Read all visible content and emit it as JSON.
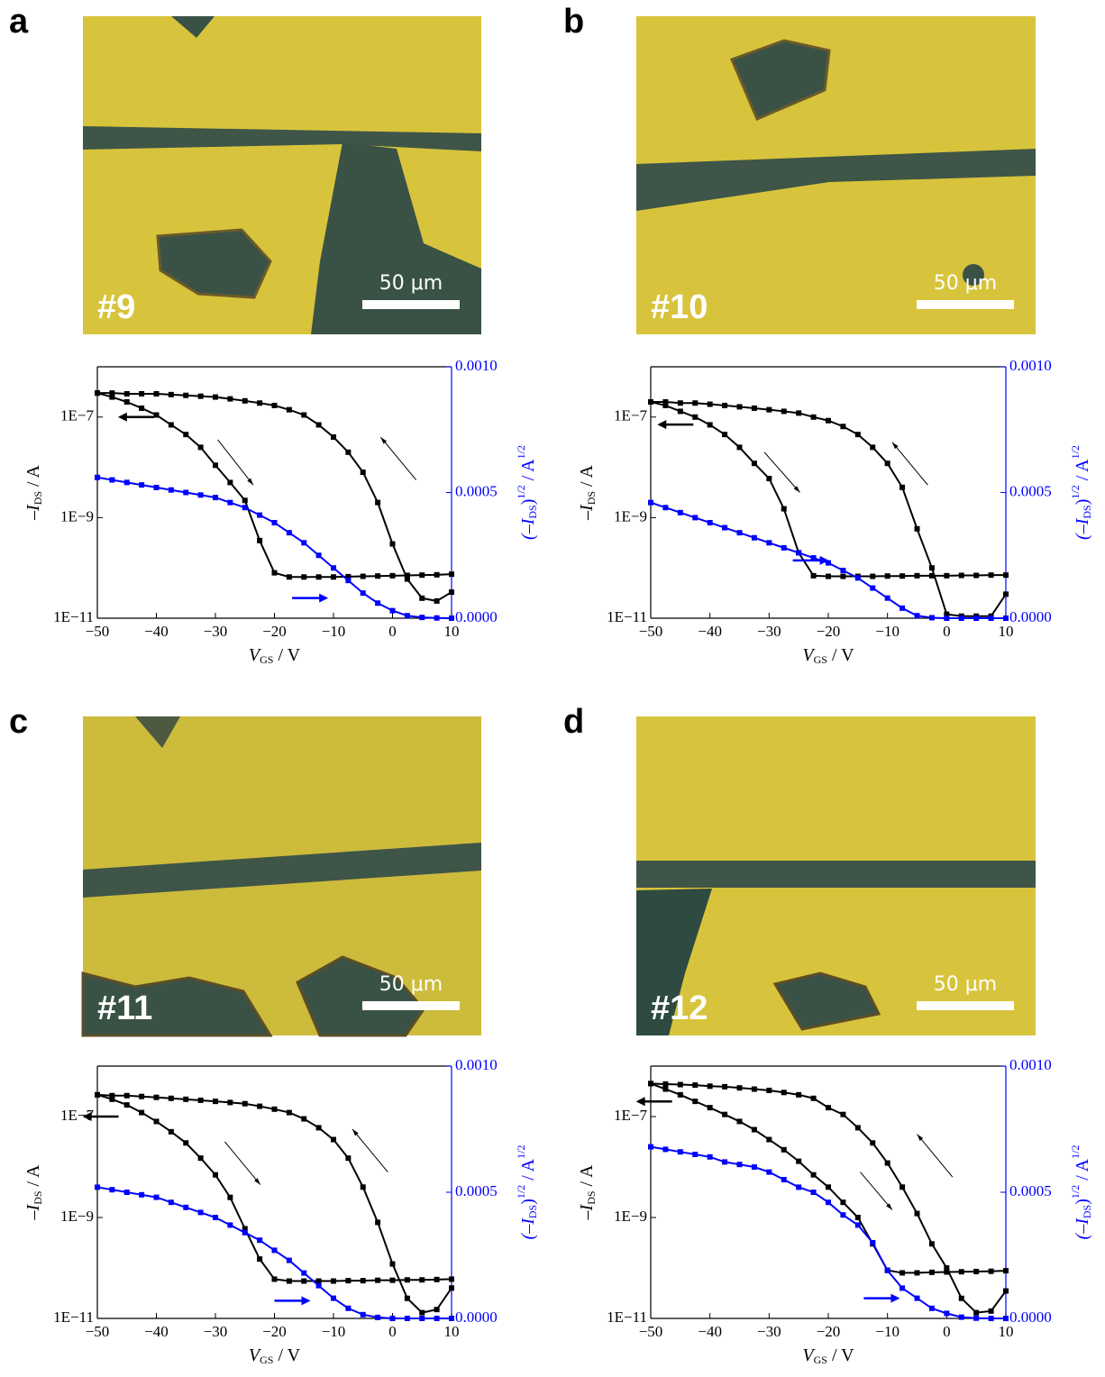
{
  "panels": [
    {
      "letter": "a",
      "image": {
        "label": "#9",
        "scale_bar": "50 μm"
      }
    },
    {
      "letter": "b",
      "image": {
        "label": "#10",
        "scale_bar": "50 μm"
      }
    },
    {
      "letter": "c",
      "image": {
        "label": "#11",
        "scale_bar": "50 μm"
      }
    },
    {
      "letter": "d",
      "image": {
        "label": "#12",
        "scale_bar": "50 μm"
      }
    }
  ],
  "chart_data": [
    {
      "type": "line",
      "ylog": true,
      "x": [
        -50,
        -47.5,
        -45,
        -42.5,
        -40,
        -37.5,
        -35,
        -32.5,
        -30,
        -27.5,
        -25,
        -22.5,
        -20,
        -17.5,
        -15,
        -12.5,
        -10,
        -7.5,
        -5,
        -2.5,
        0,
        2.5,
        5,
        7.5,
        10
      ],
      "series": [
        {
          "color": "#000000",
          "values": [
            3e-07,
            2.5e-07,
            2e-07,
            1.5e-07,
            1.1e-07,
            7e-08,
            4.5e-08,
            2.5e-08,
            1.1e-08,
            5e-09,
            2.2e-09,
            3.5e-10,
            8e-11,
            6.6e-11,
            6.6e-11,
            6.6e-11,
            6.6e-11,
            6.7e-11,
            6.8e-11,
            6.9e-11,
            7e-11,
            7.1e-11,
            7.2e-11,
            7.3e-11,
            7.5e-11
          ]
        },
        {
          "color": "#000000",
          "values": [
            3e-07,
            3e-07,
            2.9e-07,
            2.9e-07,
            2.9e-07,
            2.8e-07,
            2.7e-07,
            2.6e-07,
            2.5e-07,
            2.3e-07,
            2.1e-07,
            1.9e-07,
            1.7e-07,
            1.4e-07,
            1.1e-07,
            7e-08,
            4e-08,
            2e-08,
            8e-09,
            2e-09,
            3e-10,
            6e-11,
            2.5e-11,
            2.2e-11,
            3.3e-11
          ]
        },
        {
          "color": "#0000ff",
          "axis": "y2",
          "values": [
            0.00056,
            0.00055,
            0.00054,
            0.00053,
            0.00052,
            0.00051,
            0.0005,
            0.00049,
            0.00048,
            0.00046,
            0.00044,
            0.00041,
            0.00038,
            0.00034,
            0.0003,
            0.00025,
            0.0002,
            0.00015,
            0.0001,
            6e-05,
            3e-05,
            1e-05,
            3e-06,
            1e-06,
            0
          ]
        }
      ],
      "xlim": [
        -50,
        10
      ],
      "xticks": [
        {
          "value": -50,
          "label": "−50"
        },
        {
          "value": -40,
          "label": "−40"
        },
        {
          "value": -30,
          "label": "−30"
        },
        {
          "value": -20,
          "label": "−20"
        },
        {
          "value": -10,
          "label": "−10"
        },
        0,
        10
      ],
      "ylim": [
        1e-11,
        1e-06
      ],
      "yticks": [
        {
          "value": 1e-11,
          "label": "1E−11"
        },
        {
          "value": 1e-09,
          "label": "1E−9"
        },
        {
          "value": 1e-07,
          "label": "1E−7"
        }
      ],
      "y2lim": [
        0,
        0.001
      ],
      "y2ticks": [
        {
          "value": 0,
          "label": "0.0000"
        },
        {
          "value": 0.0005,
          "label": "0.0005"
        },
        {
          "value": 0.001,
          "label": "0.0010"
        }
      ],
      "xlabel": {
        "symbol": "V",
        "sub": "GS",
        "unit": " / V"
      },
      "ylabel": {
        "symbol": "–I",
        "sub": "DS",
        "unit": " / A"
      },
      "y2label": {
        "open": "(–I",
        "sub": "DS",
        "close": ")",
        "sup": "1/2",
        "unit": " / A",
        "unit_sup": "1/2"
      }
    },
    {
      "type": "line",
      "ylog": true,
      "x": [
        -50,
        -47.5,
        -45,
        -42.5,
        -40,
        -37.5,
        -35,
        -32.5,
        -30,
        -27.5,
        -25,
        -22.5,
        -20,
        -17.5,
        -15,
        -12.5,
        -10,
        -7.5,
        -5,
        -2.5,
        0,
        2.5,
        5,
        7.5,
        10
      ],
      "series": [
        {
          "color": "#000000",
          "values": [
            2e-07,
            1.7e-07,
            1.3e-07,
            1e-07,
            7e-08,
            4.5e-08,
            2.5e-08,
            1.2e-08,
            6e-09,
            1.5e-09,
            2e-10,
            7e-11,
            6.8e-11,
            6.8e-11,
            6.8e-11,
            6.8e-11,
            6.9e-11,
            6.9e-11,
            7e-11,
            7e-11,
            7e-11,
            7.1e-11,
            7.1e-11,
            7.2e-11,
            7.2e-11
          ]
        },
        {
          "color": "#000000",
          "values": [
            2e-07,
            2e-07,
            1.9e-07,
            1.9e-07,
            1.8e-07,
            1.7e-07,
            1.6e-07,
            1.5e-07,
            1.4e-07,
            1.3e-07,
            1.2e-07,
            1e-07,
            8.5e-08,
            6.5e-08,
            4.5e-08,
            2.5e-08,
            1.2e-08,
            4e-09,
            6e-10,
            1e-10,
            1.2e-11,
            1.1e-11,
            1.1e-11,
            1.1e-11,
            3e-11
          ]
        },
        {
          "color": "#0000ff",
          "axis": "y2",
          "values": [
            0.00046,
            0.00044,
            0.00042,
            0.0004,
            0.00038,
            0.00036,
            0.00034,
            0.00032,
            0.0003,
            0.00028,
            0.00026,
            0.00024,
            0.00022,
            0.00019,
            0.00016,
            0.00012,
            8e-05,
            4e-05,
            1e-05,
            2e-06,
            0,
            0,
            0,
            0,
            0
          ]
        }
      ],
      "xlim": [
        -50,
        10
      ],
      "xticks": [
        {
          "value": -50,
          "label": "−50"
        },
        {
          "value": -40,
          "label": "−40"
        },
        {
          "value": -30,
          "label": "−30"
        },
        {
          "value": -20,
          "label": "−20"
        },
        {
          "value": -10,
          "label": "−10"
        },
        0,
        10
      ],
      "ylim": [
        1e-11,
        1e-06
      ],
      "yticks": [
        {
          "value": 1e-11,
          "label": "1E−11"
        },
        {
          "value": 1e-09,
          "label": "1E−9"
        },
        {
          "value": 1e-07,
          "label": "1E−7"
        }
      ],
      "y2lim": [
        0,
        0.001
      ],
      "y2ticks": [
        {
          "value": 0,
          "label": "0.0000"
        },
        {
          "value": 0.0005,
          "label": "0.0005"
        },
        {
          "value": 0.001,
          "label": "0.0010"
        }
      ],
      "xlabel": {
        "symbol": "V",
        "sub": "GS",
        "unit": " / V"
      },
      "ylabel": {
        "symbol": "–I",
        "sub": "DS",
        "unit": " / A"
      },
      "y2label": {
        "open": "(–I",
        "sub": "DS",
        "close": ")",
        "sup": "1/2",
        "unit": " / A",
        "unit_sup": "1/2"
      }
    },
    {
      "type": "line",
      "ylog": true,
      "x": [
        -50,
        -47.5,
        -45,
        -42.5,
        -40,
        -37.5,
        -35,
        -32.5,
        -30,
        -27.5,
        -25,
        -22.5,
        -20,
        -17.5,
        -15,
        -12.5,
        -10,
        -7.5,
        -5,
        -2.5,
        0,
        2.5,
        5,
        7.5,
        10
      ],
      "series": [
        {
          "color": "#000000",
          "values": [
            2.7e-07,
            2.2e-07,
            1.7e-07,
            1.2e-07,
            8e-08,
            5e-08,
            3e-08,
            1.5e-08,
            7e-09,
            2.5e-09,
            6e-10,
            1.5e-10,
            6e-11,
            5.5e-11,
            5.5e-11,
            5.5e-11,
            5.5e-11,
            5.6e-11,
            5.6e-11,
            5.7e-11,
            5.7e-11,
            5.8e-11,
            5.8e-11,
            5.9e-11,
            6e-11
          ]
        },
        {
          "color": "#000000",
          "values": [
            2.7e-07,
            2.6e-07,
            2.6e-07,
            2.5e-07,
            2.4e-07,
            2.3e-07,
            2.2e-07,
            2.1e-07,
            2e-07,
            1.9e-07,
            1.8e-07,
            1.6e-07,
            1.4e-07,
            1.2e-07,
            9e-08,
            6e-08,
            3.5e-08,
            1.5e-08,
            4e-09,
            8e-10,
            1.2e-10,
            2.5e-11,
            1.3e-11,
            1.5e-11,
            4e-11
          ]
        },
        {
          "color": "#0000ff",
          "axis": "y2",
          "values": [
            0.00052,
            0.00051,
            0.0005,
            0.00049,
            0.00048,
            0.00046,
            0.00044,
            0.00042,
            0.0004,
            0.00037,
            0.00034,
            0.00031,
            0.00027,
            0.00023,
            0.00018,
            0.00013,
            8e-05,
            4e-05,
            1.5e-05,
            4e-06,
            0,
            0,
            0,
            0,
            0
          ]
        }
      ],
      "xlim": [
        -50,
        10
      ],
      "xticks": [
        {
          "value": -50,
          "label": "−50"
        },
        {
          "value": -40,
          "label": "−40"
        },
        {
          "value": -30,
          "label": "−30"
        },
        {
          "value": -20,
          "label": "−20"
        },
        {
          "value": -10,
          "label": "−10"
        },
        0,
        10
      ],
      "ylim": [
        1e-11,
        1e-06
      ],
      "yticks": [
        {
          "value": 1e-11,
          "label": "1E−11"
        },
        {
          "value": 1e-09,
          "label": "1E−9"
        },
        {
          "value": 1e-07,
          "label": "1E−7"
        }
      ],
      "y2lim": [
        0,
        0.001
      ],
      "y2ticks": [
        {
          "value": 0,
          "label": "0.0000"
        },
        {
          "value": 0.0005,
          "label": "0.0005"
        },
        {
          "value": 0.001,
          "label": "0.0010"
        }
      ],
      "xlabel": {
        "symbol": "V",
        "sub": "GS",
        "unit": " / V"
      },
      "ylabel": {
        "symbol": "–I",
        "sub": "DS",
        "unit": " / A"
      },
      "y2label": {
        "open": "(–I",
        "sub": "DS",
        "close": ")",
        "sup": "1/2",
        "unit": " / A",
        "unit_sup": "1/2"
      }
    },
    {
      "type": "line",
      "ylog": true,
      "x": [
        -50,
        -47.5,
        -45,
        -42.5,
        -40,
        -37.5,
        -35,
        -32.5,
        -30,
        -27.5,
        -25,
        -22.5,
        -20,
        -17.5,
        -15,
        -12.5,
        -10,
        -7.5,
        -5,
        -2.5,
        0,
        2.5,
        5,
        7.5,
        10
      ],
      "series": [
        {
          "color": "#000000",
          "values": [
            4.5e-07,
            3.5e-07,
            2.7e-07,
            2e-07,
            1.5e-07,
            1.1e-07,
            8e-08,
            5.5e-08,
            3.5e-08,
            2.2e-08,
            1.3e-08,
            7e-09,
            4e-09,
            2e-09,
            1e-09,
            3e-10,
            9e-11,
            8e-11,
            8e-11,
            8.2e-11,
            8.3e-11,
            8.4e-11,
            8.5e-11,
            8.6e-11,
            8.8e-11
          ]
        },
        {
          "color": "#000000",
          "values": [
            4.5e-07,
            4.4e-07,
            4.3e-07,
            4.2e-07,
            4e-07,
            3.9e-07,
            3.7e-07,
            3.5e-07,
            3.3e-07,
            3e-07,
            2.7e-07,
            2.3e-07,
            1.5e-07,
            1.1e-07,
            6e-08,
            3e-08,
            1.2e-08,
            4e-09,
            1.2e-09,
            3e-10,
            1e-10,
            2.5e-11,
            1.3e-11,
            1.4e-11,
            3.5e-11
          ]
        },
        {
          "color": "#0000ff",
          "axis": "y2",
          "values": [
            0.00068,
            0.00067,
            0.00066,
            0.00065,
            0.00064,
            0.00062,
            0.00061,
            0.0006,
            0.00058,
            0.00055,
            0.00052,
            0.0005,
            0.00046,
            0.00041,
            0.00037,
            0.0003,
            0.00019,
            0.00012,
            8e-05,
            4e-05,
            2e-05,
            5e-06,
            1e-06,
            0,
            0
          ]
        }
      ],
      "xlim": [
        -50,
        10
      ],
      "xticks": [
        {
          "value": -50,
          "label": "−50"
        },
        {
          "value": -40,
          "label": "−40"
        },
        {
          "value": -30,
          "label": "−30"
        },
        {
          "value": -20,
          "label": "−20"
        },
        {
          "value": -10,
          "label": "−10"
        },
        0,
        10
      ],
      "ylim": [
        1e-11,
        1e-06
      ],
      "yticks": [
        {
          "value": 1e-11,
          "label": "1E−11"
        },
        {
          "value": 1e-09,
          "label": "1E−9"
        },
        {
          "value": 1e-07,
          "label": "1E−7"
        }
      ],
      "y2lim": [
        0,
        0.001
      ],
      "y2ticks": [
        {
          "value": 0,
          "label": "0.0000"
        },
        {
          "value": 0.0005,
          "label": "0.0005"
        },
        {
          "value": 0.001,
          "label": "0.0010"
        }
      ],
      "xlabel": {
        "symbol": "V",
        "sub": "GS",
        "unit": " / V"
      },
      "ylabel": {
        "symbol": "–I",
        "sub": "DS",
        "unit": " / A"
      },
      "y2label": {
        "open": "(–I",
        "sub": "DS",
        "close": ")",
        "sup": "1/2",
        "unit": " / A",
        "unit_sup": "1/2"
      }
    }
  ]
}
